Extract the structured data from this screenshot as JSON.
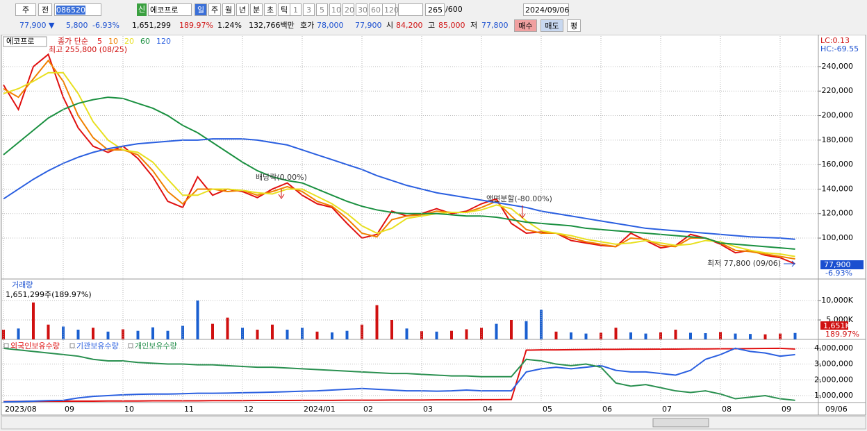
{
  "toolbar": {
    "period_unit": "주",
    "prev": "전",
    "code": "086520",
    "badge": "신",
    "name": "에코프로",
    "periods": [
      "일",
      "주",
      "월",
      "년",
      "분",
      "초",
      "틱"
    ],
    "minutes": [
      "1",
      "3",
      "5",
      "10",
      "20",
      "30",
      "60",
      "120"
    ],
    "count": "265",
    "count_max": "/600",
    "date": "2024/09/06"
  },
  "quote": {
    "price": "77,900 ▼",
    "change": "5,800",
    "change_rate": "-6.93%",
    "volume": "1,651,299",
    "volume_rate": "189.97%",
    "turnover": "1.24%",
    "amount": "132,766백만",
    "bid_label": "호가",
    "ask": "78,000",
    "bid": "77,900",
    "open_label": "시",
    "open": "84,200",
    "high_label": "고",
    "high": "85,000",
    "low_label": "저",
    "low": "77,800",
    "buy": "매수",
    "sell": "매도",
    "avg": "평"
  },
  "chart_data": [
    {
      "type": "line",
      "title": "에코프로",
      "legend_prefix": "종가 단순",
      "ylim": [
        66600,
        264900
      ],
      "yticks": [
        {
          "value": 100000,
          "label": "100,000"
        },
        {
          "value": 120000,
          "label": "120,000"
        },
        {
          "value": 140000,
          "label": "140,000"
        },
        {
          "value": 160000,
          "label": "160,000"
        },
        {
          "value": 180000,
          "label": "180,000"
        },
        {
          "value": 200000,
          "label": "200,000"
        },
        {
          "value": 220000,
          "label": "220,000"
        },
        {
          "value": 240000,
          "label": "240,000"
        }
      ],
      "grid": true,
      "series": [
        {
          "name": "5",
          "color": "#e01010",
          "values": [
            225000,
            205000,
            240000,
            250000,
            215000,
            190000,
            175000,
            170000,
            175000,
            165000,
            150000,
            130000,
            125000,
            150000,
            135000,
            140000,
            138000,
            133000,
            140000,
            145000,
            135000,
            128000,
            125000,
            112000,
            100000,
            103000,
            122000,
            118000,
            120000,
            124000,
            120000,
            122000,
            128000,
            132000,
            112000,
            104000,
            105000,
            104000,
            98000,
            96000,
            94000,
            93000,
            104000,
            98000,
            92000,
            94000,
            103000,
            100000,
            95000,
            88000,
            90000,
            86000,
            84000,
            79000
          ]
        },
        {
          "name": "10",
          "color": "#f08000",
          "values": [
            222000,
            215000,
            230000,
            245000,
            228000,
            200000,
            182000,
            172000,
            172000,
            168000,
            155000,
            138000,
            128000,
            140000,
            140000,
            138000,
            139000,
            135000,
            138000,
            142000,
            138000,
            130000,
            126000,
            116000,
            104000,
            101000,
            115000,
            118000,
            119000,
            122000,
            121000,
            121000,
            125000,
            130000,
            118000,
            107000,
            104000,
            104000,
            100000,
            97000,
            95000,
            93000,
            100000,
            99000,
            94000,
            93000,
            100000,
            100000,
            96000,
            90000,
            89000,
            87000,
            85000,
            83000
          ]
        },
        {
          "name": "20",
          "color": "#e8e020",
          "values": [
            218000,
            222000,
            228000,
            235000,
            235000,
            218000,
            195000,
            180000,
            172000,
            170000,
            162000,
            148000,
            135000,
            135000,
            140000,
            140000,
            139000,
            137000,
            136000,
            140000,
            140000,
            134000,
            128000,
            120000,
            110000,
            104000,
            108000,
            116000,
            118000,
            120000,
            121000,
            121000,
            123000,
            127000,
            124000,
            114000,
            106000,
            104000,
            102000,
            99000,
            97000,
            95000,
            96000,
            98000,
            96000,
            94000,
            95000,
            98000,
            97000,
            93000,
            90000,
            88000,
            87000,
            85000
          ]
        },
        {
          "name": "60",
          "color": "#1a9040",
          "values": [
            168000,
            178000,
            188000,
            198000,
            205000,
            210000,
            213000,
            215000,
            214000,
            210000,
            206000,
            200000,
            192000,
            186000,
            178000,
            170000,
            162000,
            155000,
            150000,
            147000,
            145000,
            140000,
            135000,
            130000,
            126000,
            123000,
            121000,
            120000,
            120000,
            120000,
            119000,
            118000,
            118000,
            117000,
            115000,
            113000,
            112000,
            111000,
            110000,
            108000,
            107000,
            106000,
            105000,
            104000,
            103000,
            102000,
            101000,
            100000,
            96000,
            95000,
            94000,
            93000,
            92000,
            91000
          ]
        },
        {
          "name": "120",
          "color": "#2a5fe0",
          "values": [
            132000,
            140000,
            148000,
            155000,
            161000,
            166000,
            170000,
            173000,
            175000,
            177000,
            178000,
            179000,
            180000,
            180000,
            181000,
            181000,
            181000,
            180000,
            178000,
            176000,
            172000,
            168000,
            164000,
            160000,
            156000,
            151000,
            147000,
            143000,
            140000,
            137000,
            135000,
            133000,
            131000,
            129000,
            127000,
            125000,
            122000,
            120000,
            118000,
            116000,
            114000,
            112000,
            110000,
            108000,
            107000,
            106000,
            105000,
            104000,
            103000,
            102000,
            101000,
            100500,
            100000,
            99000
          ]
        }
      ],
      "annotations": [
        "최고 255,800 (08/25)",
        "배당락(0.00%)",
        "액면분할(-80.00%)",
        "최저 77,800 (09/06)"
      ],
      "lc": "LC:0.13",
      "hc": "HC:-69.55",
      "current_label": "77,900",
      "current_change": "-6.93%"
    },
    {
      "type": "bar",
      "title": "거래량",
      "subtitle": "1,651,299주(189.97%)",
      "ylim": [
        0,
        15180
      ],
      "yticks": [
        {
          "value": 5000,
          "label": "5,000K"
        },
        {
          "value": 10000,
          "label": "10,000K"
        }
      ],
      "values": [
        2500,
        2800,
        9500,
        3800,
        3300,
        2500,
        3000,
        2000,
        2600,
        2200,
        3100,
        2200,
        3500,
        10000,
        4000,
        5600,
        3000,
        2500,
        3800,
        2500,
        3000,
        2000,
        1800,
        2200,
        3800,
        8800,
        5000,
        2800,
        2100,
        2000,
        2200,
        2600,
        3000,
        4000,
        5000,
        4700,
        7600,
        2000,
        1800,
        1500,
        1700,
        3000,
        1800,
        1500,
        1800,
        2500,
        1700,
        1600,
        1900,
        1500,
        1400,
        1300,
        1500,
        1651
      ],
      "colors": [
        "#d01010",
        "#1a5fd0",
        "#d01010",
        "#d01010",
        "#1a5fd0",
        "#1a5fd0",
        "#d01010",
        "#1a5fd0",
        "#d01010",
        "#1a5fd0",
        "#1a5fd0",
        "#1a5fd0",
        "#1a5fd0",
        "#1a5fd0",
        "#d01010",
        "#d01010",
        "#1a5fd0",
        "#d01010",
        "#d01010",
        "#1a5fd0",
        "#1a5fd0",
        "#d01010",
        "#1a5fd0",
        "#1a5fd0",
        "#d01010",
        "#d01010",
        "#d01010",
        "#1a5fd0",
        "#d01010",
        "#1a5fd0",
        "#d01010",
        "#d01010",
        "#d01010",
        "#1a5fd0",
        "#d01010",
        "#1a5fd0",
        "#1a5fd0",
        "#d01010",
        "#1a5fd0",
        "#1a5fd0",
        "#d01010",
        "#d01010",
        "#1a5fd0",
        "#1a5fd0",
        "#d01010",
        "#d01010",
        "#1a5fd0",
        "#1a5fd0",
        "#d01010",
        "#1a5fd0",
        "#1a5fd0",
        "#d01010",
        "#d01010",
        "#1a5fd0"
      ],
      "current_label": "1,651K",
      "current_change": "189.97%"
    },
    {
      "type": "line",
      "categories": [
        "2023/08",
        null,
        null,
        null,
        "09",
        null,
        null,
        null,
        "10",
        null,
        null,
        null,
        "11",
        null,
        null,
        null,
        "12",
        null,
        null,
        null,
        "2024/01",
        null,
        null,
        null,
        "02",
        null,
        null,
        null,
        "03",
        null,
        null,
        null,
        "04",
        null,
        null,
        null,
        "05",
        null,
        null,
        null,
        "06",
        null,
        null,
        null,
        "07",
        null,
        null,
        null,
        "08",
        null,
        null,
        null,
        "09",
        null
      ],
      "x_end_label": "09/06",
      "ylim": [
        560000,
        4520000
      ],
      "yticks": [
        {
          "value": 1000000,
          "label": "1,000,000"
        },
        {
          "value": 2000000,
          "label": "2,000,000"
        },
        {
          "value": 3000000,
          "label": "3,000,000"
        },
        {
          "value": 4000000,
          "label": "4,000,000"
        }
      ],
      "series": [
        {
          "name": "외국인보유수량",
          "color": "#e01010",
          "values": [
            620000,
            630000,
            640000,
            650000,
            650000,
            650000,
            650000,
            660000,
            660000,
            660000,
            670000,
            670000,
            670000,
            670000,
            680000,
            680000,
            680000,
            690000,
            690000,
            690000,
            700000,
            700000,
            700000,
            710000,
            710000,
            710000,
            720000,
            720000,
            720000,
            730000,
            730000,
            730000,
            740000,
            740000,
            750000,
            3880000,
            3900000,
            3900000,
            3910000,
            3920000,
            3930000,
            3930000,
            3940000,
            3940000,
            3950000,
            3950000,
            3960000,
            3960000,
            3970000,
            3970000,
            3980000,
            3990000,
            4000000,
            3950000
          ]
        },
        {
          "name": "기관보유수량",
          "color": "#2a5fe0",
          "values": [
            600000,
            620000,
            650000,
            680000,
            700000,
            850000,
            950000,
            1000000,
            1050000,
            1080000,
            1100000,
            1100000,
            1120000,
            1150000,
            1150000,
            1160000,
            1180000,
            1200000,
            1220000,
            1250000,
            1280000,
            1300000,
            1350000,
            1400000,
            1450000,
            1400000,
            1350000,
            1300000,
            1300000,
            1280000,
            1300000,
            1350000,
            1300000,
            1300000,
            1300000,
            2500000,
            2700000,
            2800000,
            2700000,
            2800000,
            2900000,
            2600000,
            2500000,
            2500000,
            2400000,
            2300000,
            2600000,
            3300000,
            3600000,
            4000000,
            3800000,
            3700000,
            3500000,
            3600000
          ]
        },
        {
          "name": "개인보유수량",
          "color": "#2a9050",
          "values": [
            4000000,
            3900000,
            3800000,
            3700000,
            3600000,
            3500000,
            3300000,
            3200000,
            3200000,
            3100000,
            3050000,
            3000000,
            3000000,
            2950000,
            2950000,
            2900000,
            2850000,
            2800000,
            2800000,
            2750000,
            2700000,
            2650000,
            2600000,
            2550000,
            2500000,
            2450000,
            2400000,
            2400000,
            2350000,
            2300000,
            2250000,
            2250000,
            2200000,
            2200000,
            2200000,
            3300000,
            3200000,
            3000000,
            2900000,
            3000000,
            2800000,
            1800000,
            1600000,
            1700000,
            1500000,
            1300000,
            1200000,
            1300000,
            1100000,
            800000,
            900000,
            1000000,
            800000,
            700000
          ]
        }
      ]
    }
  ]
}
